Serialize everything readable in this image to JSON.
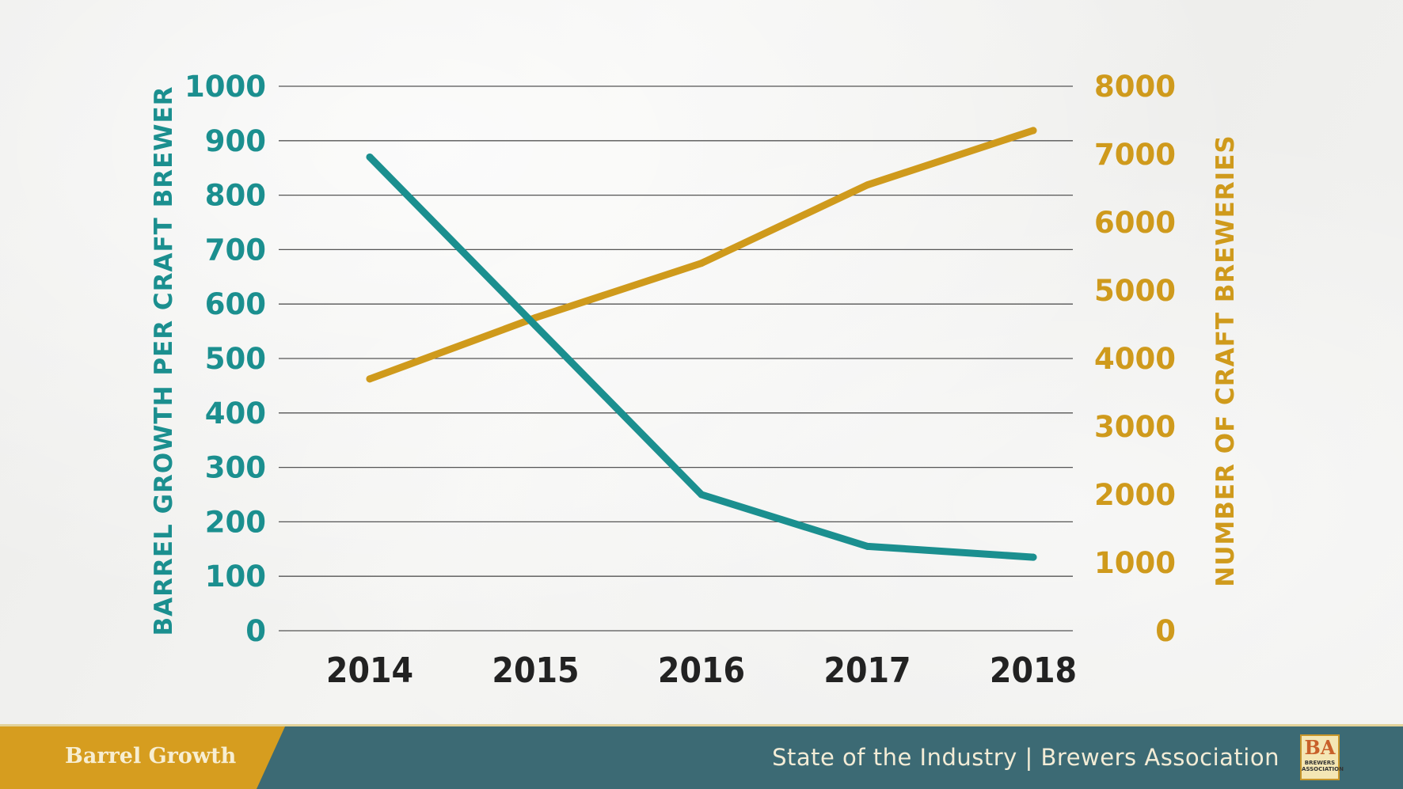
{
  "chart_data": {
    "type": "line",
    "title": "",
    "categories": [
      "2014",
      "2015",
      "2016",
      "2017",
      "2018"
    ],
    "series": [
      {
        "name": "Barrel Growth per Craft Brewer",
        "axis": "left",
        "color": "#1b8f8f",
        "values": [
          870,
          560,
          250,
          155,
          135
        ]
      },
      {
        "name": "Number of Craft Breweries",
        "axis": "right",
        "color": "#cf9a1c",
        "values": [
          3700,
          4600,
          5400,
          6550,
          7350
        ]
      }
    ],
    "ylabel": "BARREL GROWTH PER CRAFT BREWER",
    "y2label": "NUMBER OF CRAFT BREWERIES",
    "ylim": [
      0,
      1000
    ],
    "y2lim": [
      0,
      8000
    ],
    "yticks": [
      "0",
      "100",
      "200",
      "300",
      "400",
      "500",
      "600",
      "700",
      "800",
      "900",
      "1000"
    ],
    "y2ticks": [
      "0",
      "1000",
      "2000",
      "3000",
      "4000",
      "5000",
      "6000",
      "7000",
      "8000"
    ],
    "grid": true,
    "colors": {
      "left": "#1b8f8f",
      "right": "#cf9a1c"
    }
  },
  "footer": {
    "section_label": "Barrel Growth",
    "caption": "State of the Industry | Brewers Association",
    "logo_mark": "BA",
    "logo_sub": "BREWERS ASSOCIATION",
    "bar_color": "#3c6a74",
    "tab_color": "#d69d1f"
  }
}
